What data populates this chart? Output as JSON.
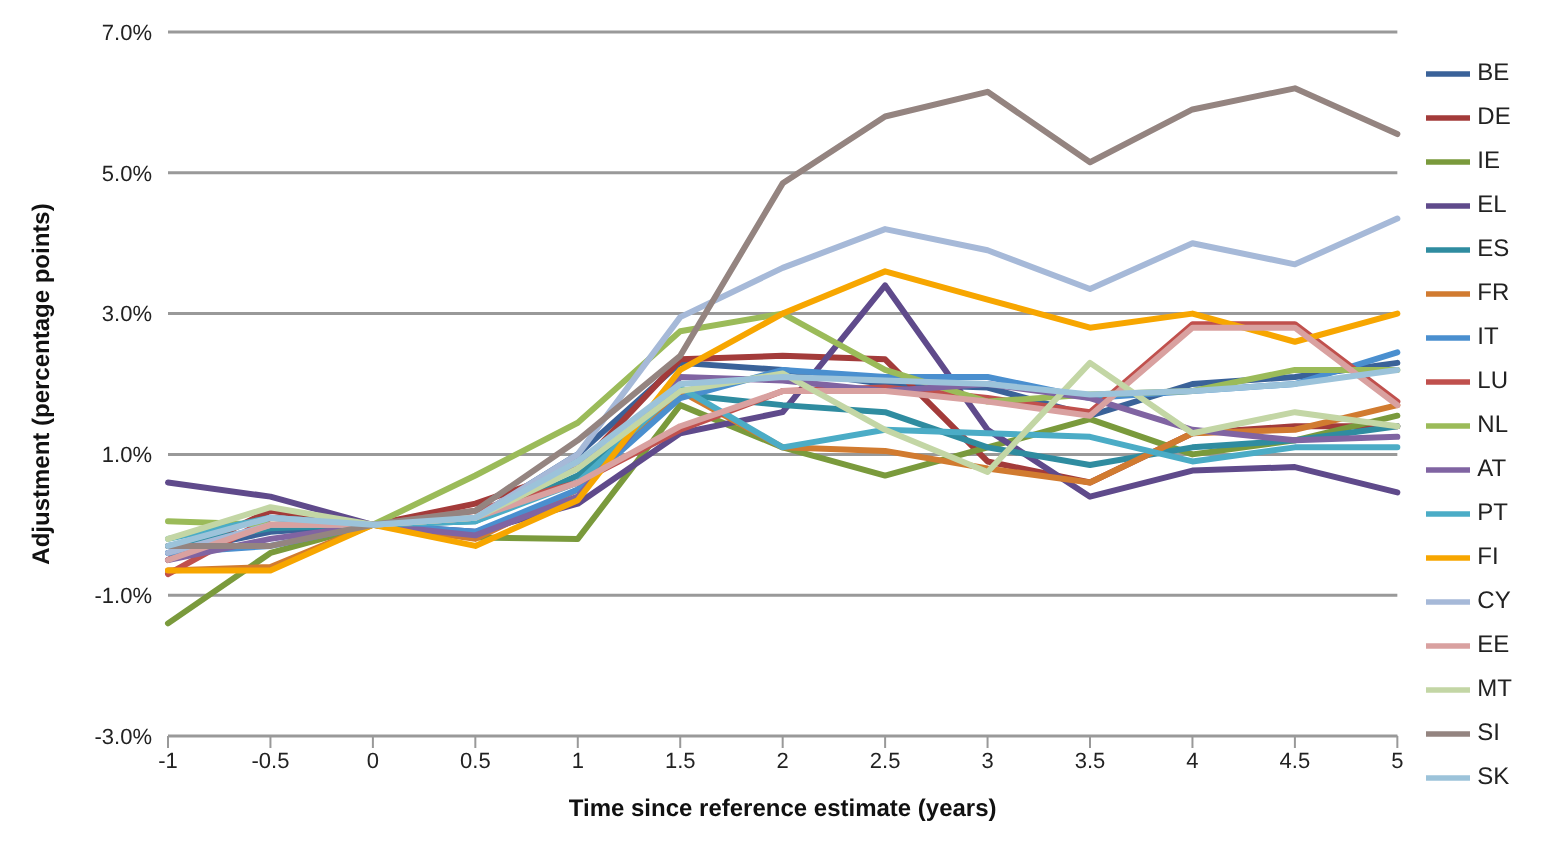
{
  "chart_data": {
    "type": "line",
    "xlabel": "Time since reference estimate (years)",
    "ylabel": "Adjustment (percentage points)",
    "categories": [
      "-1",
      "-0.5",
      "0",
      "0.5",
      "1",
      "1.5",
      "2",
      "2.5",
      "3",
      "3.5",
      "4",
      "4.5",
      "5"
    ],
    "ylim": [
      -3,
      7
    ],
    "yticks": [
      {
        "value": -3,
        "label": "-3.0%"
      },
      {
        "value": -1,
        "label": "-1.0%"
      },
      {
        "value": 1,
        "label": "1.0%"
      },
      {
        "value": 3,
        "label": "3.0%"
      },
      {
        "value": 5,
        "label": "5.0%"
      },
      {
        "value": 7,
        "label": "7.0%"
      }
    ],
    "grid": "y",
    "legend": "right",
    "marker": "none",
    "line_style": "solid",
    "series": [
      {
        "name": "BE",
        "color": "#3a6299",
        "values": [
          -0.4,
          -0.1,
          0,
          0.1,
          1.0,
          2.3,
          2.2,
          2.0,
          1.95,
          1.55,
          2.0,
          2.1,
          2.3
        ]
      },
      {
        "name": "DE",
        "color": "#a33b3a",
        "values": [
          -0.5,
          0.2,
          0,
          0.3,
          0.8,
          2.35,
          2.4,
          2.35,
          0.9,
          0.6,
          1.3,
          1.4,
          1.4
        ]
      },
      {
        "name": "IE",
        "color": "#7a9a3c",
        "values": [
          -1.4,
          -0.4,
          0,
          -0.18,
          -0.2,
          1.7,
          1.1,
          0.7,
          1.1,
          1.5,
          1.0,
          1.2,
          1.55
        ]
      },
      {
        "name": "EL",
        "color": "#5f4a8b",
        "values": [
          0.6,
          0.4,
          0,
          -0.1,
          0.3,
          1.3,
          1.6,
          3.4,
          1.35,
          0.4,
          0.77,
          0.82,
          0.46
        ]
      },
      {
        "name": "ES",
        "color": "#2f8ca0",
        "values": [
          -0.3,
          -0.05,
          0,
          0.05,
          0.7,
          1.85,
          1.7,
          1.6,
          1.1,
          0.85,
          1.1,
          1.2,
          1.4
        ]
      },
      {
        "name": "FR",
        "color": "#d17b30",
        "values": [
          -0.65,
          -0.6,
          0,
          -0.2,
          0.5,
          1.9,
          1.1,
          1.05,
          0.8,
          0.6,
          1.3,
          1.35,
          1.7
        ]
      },
      {
        "name": "IT",
        "color": "#4a8fcf",
        "values": [
          -0.4,
          -0.3,
          0,
          -0.1,
          0.5,
          1.8,
          2.2,
          2.1,
          2.1,
          1.8,
          1.9,
          2.0,
          2.45
        ]
      },
      {
        "name": "LU",
        "color": "#c0504d",
        "values": [
          -0.7,
          0.1,
          0,
          0.2,
          0.6,
          1.35,
          1.9,
          1.95,
          1.8,
          1.6,
          2.85,
          2.85,
          1.75
        ]
      },
      {
        "name": "NL",
        "color": "#9bbb59",
        "values": [
          0.05,
          0.0,
          0,
          0.7,
          1.45,
          2.75,
          3.0,
          2.2,
          1.75,
          1.85,
          1.9,
          2.2,
          2.2
        ]
      },
      {
        "name": "AT",
        "color": "#8064a2",
        "values": [
          -0.5,
          -0.2,
          0,
          -0.15,
          0.4,
          2.1,
          2.05,
          1.9,
          2.0,
          1.8,
          1.35,
          1.2,
          1.25
        ]
      },
      {
        "name": "PT",
        "color": "#4bacc6",
        "values": [
          -0.2,
          0.1,
          0,
          0.05,
          0.6,
          1.95,
          1.1,
          1.35,
          1.3,
          1.25,
          0.9,
          1.1,
          1.1
        ]
      },
      {
        "name": "FI",
        "color": "#f7a600",
        "values": [
          -0.65,
          -0.65,
          0,
          -0.3,
          0.35,
          2.2,
          3.0,
          3.6,
          3.2,
          2.8,
          3.0,
          2.6,
          3.0
        ]
      },
      {
        "name": "CY",
        "color": "#a6b9d8",
        "values": [
          -0.4,
          0.0,
          0,
          0.1,
          1.0,
          2.95,
          3.65,
          4.2,
          3.9,
          3.35,
          4.0,
          3.7,
          4.35
        ]
      },
      {
        "name": "EE",
        "color": "#d9a1a0",
        "values": [
          -0.5,
          0.0,
          0,
          0.1,
          0.6,
          1.4,
          1.9,
          1.9,
          1.75,
          1.55,
          2.8,
          2.8,
          1.7
        ]
      },
      {
        "name": "MT",
        "color": "#c3d6a5",
        "values": [
          -0.2,
          0.25,
          0,
          0.1,
          0.8,
          1.9,
          2.15,
          1.35,
          0.75,
          2.3,
          1.3,
          1.6,
          1.4
        ]
      },
      {
        "name": "SI",
        "color": "#948480",
        "values": [
          -0.3,
          -0.3,
          0,
          0.2,
          1.2,
          2.4,
          4.85,
          5.8,
          6.15,
          5.15,
          5.9,
          6.2,
          5.55
        ]
      },
      {
        "name": "SK",
        "color": "#9cc3da",
        "values": [
          -0.3,
          0.1,
          0,
          0.1,
          0.9,
          2.0,
          2.1,
          2.05,
          2.0,
          1.85,
          1.9,
          2.0,
          2.2
        ]
      }
    ]
  }
}
